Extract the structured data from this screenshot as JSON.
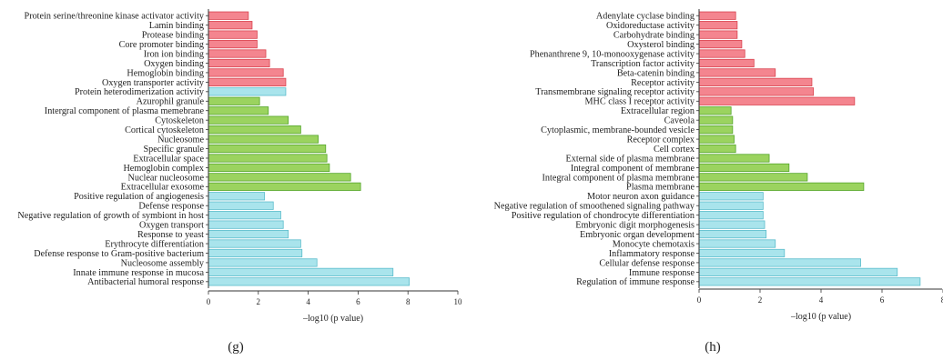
{
  "chart_data": [
    {
      "type": "bar",
      "orientation": "horizontal",
      "panel_label": "(g)",
      "xlabel": "–log10 (p value)",
      "xlim": [
        0,
        10
      ],
      "xticks": [
        0,
        2,
        4,
        6,
        8,
        10
      ],
      "groups": [
        {
          "color": "#f4858f",
          "edge": "#d9434f",
          "start": 0,
          "end": 8
        },
        {
          "color": "#9bd35f",
          "edge": "#55a62b",
          "start": 9,
          "end": 19
        },
        {
          "color": "#a9e4ec",
          "edge": "#5bbccb",
          "start": 20,
          "end": 29
        }
      ],
      "categories": [
        "Protein serine/threonine kinase activator activity",
        "Lamin binding",
        "Protease binding",
        "Core promoter binding",
        "Iron ion binding",
        "Oxygen binding",
        "Hemoglobin binding",
        "Oxygen transporter activity",
        "Protein heterodimerization activity",
        "Azurophil granule",
        "Intergral component of plasma memebrane",
        "Cytoskeleton",
        "Cortical cytoskeleton",
        "Nucleosome",
        "Specific granule",
        "Extracellular space",
        "Hemoglobin complex",
        "Nuclear nucleosome",
        "Extracellular exosome",
        "Positive regulation of angiogenesis",
        "Defense response",
        "Negative regulation of growth of symbiont in host",
        "Oxygen transport",
        "Response to yeast",
        "Erythrocyte differentiation",
        "Defense response to Gram-positive bacterium",
        "Nucleosome assembly",
        "Innate immune response in mucosa",
        "Antibacterial humoral response"
      ],
      "values": [
        1.6,
        1.75,
        1.95,
        1.95,
        2.3,
        2.45,
        3.0,
        3.1,
        3.1,
        2.05,
        2.4,
        3.2,
        3.7,
        4.4,
        4.7,
        4.75,
        4.85,
        5.7,
        6.1,
        2.25,
        2.6,
        2.9,
        3.0,
        3.2,
        3.7,
        3.75,
        4.35,
        7.4,
        8.05
      ],
      "title": ""
    },
    {
      "type": "bar",
      "orientation": "horizontal",
      "panel_label": "(h)",
      "xlabel": "–log10 (p value)",
      "xlim": [
        0,
        8
      ],
      "xticks": [
        0,
        2,
        4,
        6,
        8
      ],
      "groups": [
        {
          "color": "#f4858f",
          "edge": "#d9434f",
          "start": 0,
          "end": 10
        },
        {
          "color": "#9bd35f",
          "edge": "#55a62b",
          "start": 10,
          "end": 19
        },
        {
          "color": "#a9e4ec",
          "edge": "#5bbccb",
          "start": 19,
          "end": 29
        }
      ],
      "categories": [
        "Adenylate cyclase binding",
        "Oxidoreductase activity",
        "Carbohydrate binding",
        "Oxysterol binding",
        "Phenanthrene 9, 10-monooxygenase activity",
        "Transcription factor activity",
        "Beta-catenin binding",
        "Receptor activity",
        "Transmembrane signaling receptor activity",
        "MHC class I receptor activity",
        "Extracellular region",
        "Caveola",
        "Cytoplasmic, membrane-bounded vesicle",
        "Receptor complex",
        "Cell cortex",
        "External side of plasma membrane",
        "Integral component of membrane",
        "Integral component of plasma membrane",
        "Plasma membrane",
        "Motor neuron axon guidance",
        "Negative regulation of smoothened signaling pathway",
        "Positive regulation of chondrocyte differentiation",
        "Embryonic digit morphogenesis",
        "Embryonic organ development",
        "Monocyte chemotaxis",
        "Inflammatory response",
        "Cellular defense response",
        "Immune response",
        "Regulation of immune response"
      ],
      "values": [
        1.2,
        1.25,
        1.25,
        1.4,
        1.5,
        1.8,
        2.5,
        3.7,
        3.75,
        5.1,
        1.05,
        1.1,
        1.1,
        1.15,
        1.2,
        2.3,
        2.95,
        3.55,
        5.4,
        2.1,
        2.1,
        2.1,
        2.15,
        2.2,
        2.5,
        2.8,
        5.3,
        6.5,
        7.25
      ],
      "title": ""
    }
  ]
}
